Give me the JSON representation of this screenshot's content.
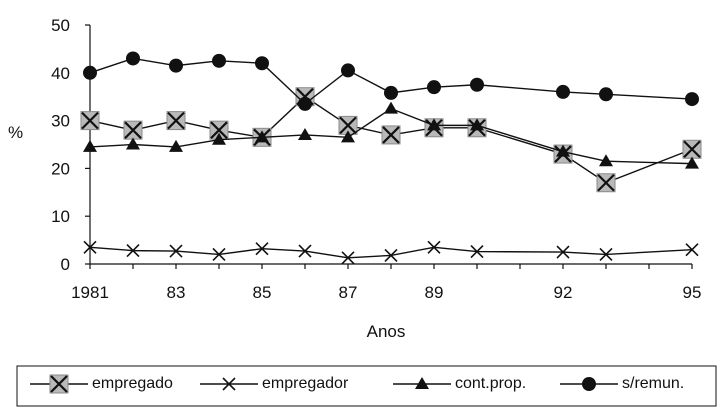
{
  "chart_data": {
    "type": "line",
    "title": "",
    "xlabel": "Anos",
    "ylabel": "%",
    "ylim": [
      0,
      50
    ],
    "yticks": [
      "0",
      "10",
      "20",
      "30",
      "40",
      "50"
    ],
    "xtick_labels": [
      "1981",
      "83",
      "85",
      "87",
      "89",
      "92",
      "95"
    ],
    "grid": false,
    "legend_position": "bottom",
    "x": [
      1981,
      1982,
      1983,
      1984,
      1985,
      1986,
      1987,
      1988,
      1989,
      1990,
      1992,
      1993,
      1995
    ],
    "series": [
      {
        "name": "empregado",
        "marker": "boxed-x",
        "values": [
          30,
          28,
          30,
          28,
          26.5,
          35,
          29,
          27,
          28.5,
          28.5,
          23,
          17,
          24
        ]
      },
      {
        "name": "empregador",
        "marker": "x",
        "values": [
          3.5,
          2.8,
          2.7,
          2,
          3.2,
          2.7,
          1.3,
          1.8,
          3.5,
          2.6,
          2.5,
          2,
          3
        ]
      },
      {
        "name": "cont.prop.",
        "marker": "triangle",
        "values": [
          24.5,
          25,
          24.5,
          26,
          26.5,
          27,
          26.5,
          32.5,
          29,
          29,
          23.5,
          21.5,
          21
        ]
      },
      {
        "name": "s/remun.",
        "marker": "circle",
        "values": [
          40,
          43,
          41.5,
          42.5,
          42,
          33.5,
          40.5,
          35.8,
          37,
          37.5,
          36,
          35.5,
          34.5
        ]
      }
    ]
  }
}
